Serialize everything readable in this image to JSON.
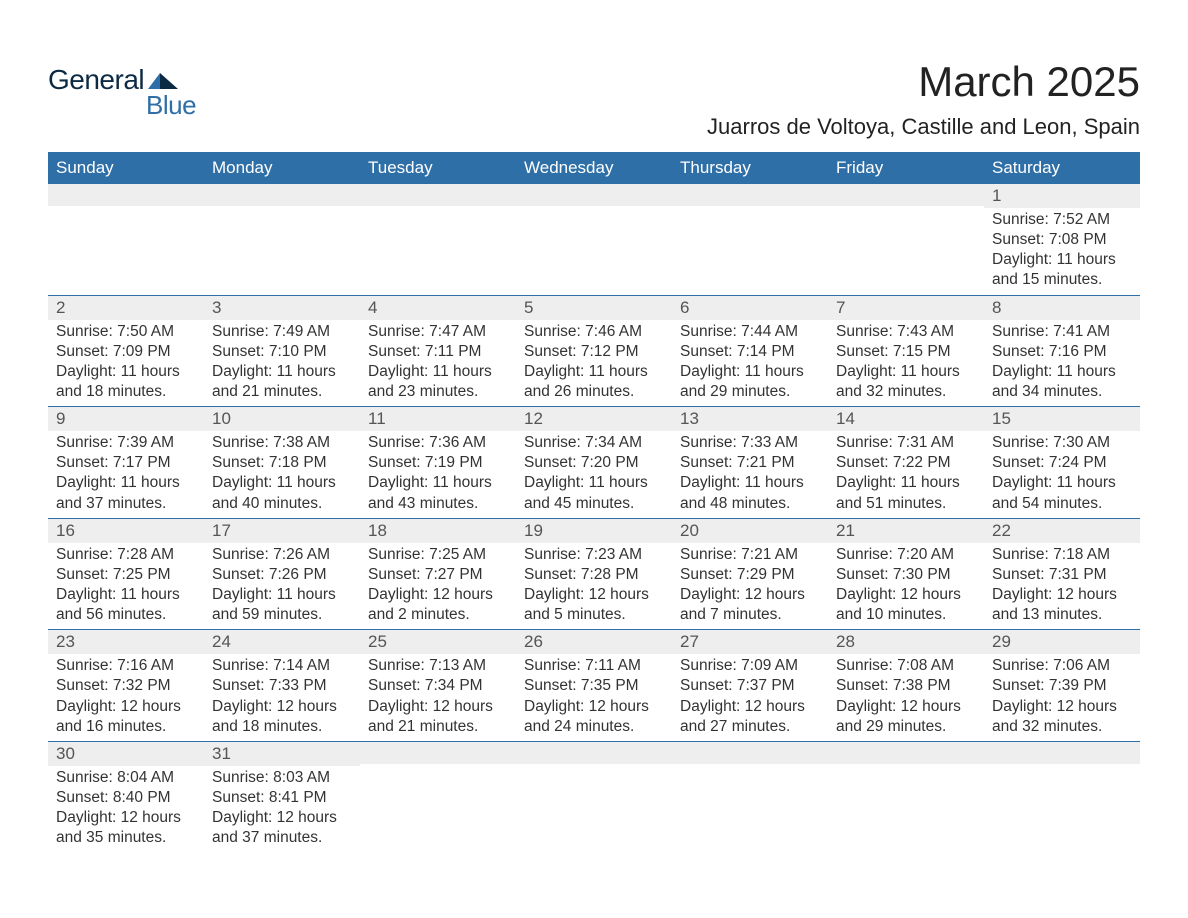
{
  "logo": {
    "word1": "General",
    "word2": "Blue",
    "word1_color": "#0c2a44",
    "word2_color": "#2f6fa7",
    "shape_color": "#2f6fa7"
  },
  "title": "March 2025",
  "location": "Juarros de Voltoya, Castille and Leon, Spain",
  "colors": {
    "header_bg": "#2f6fa7",
    "header_text": "#ffffff",
    "daynum_bg": "#eeeeee",
    "row_border": "#2f6fa7",
    "body_text": "#333333"
  },
  "weekdays": [
    "Sunday",
    "Monday",
    "Tuesday",
    "Wednesday",
    "Thursday",
    "Friday",
    "Saturday"
  ],
  "weeks": [
    [
      null,
      null,
      null,
      null,
      null,
      null,
      {
        "n": "1",
        "sunrise": "Sunrise: 7:52 AM",
        "sunset": "Sunset: 7:08 PM",
        "daylight": "Daylight: 11 hours and 15 minutes."
      }
    ],
    [
      {
        "n": "2",
        "sunrise": "Sunrise: 7:50 AM",
        "sunset": "Sunset: 7:09 PM",
        "daylight": "Daylight: 11 hours and 18 minutes."
      },
      {
        "n": "3",
        "sunrise": "Sunrise: 7:49 AM",
        "sunset": "Sunset: 7:10 PM",
        "daylight": "Daylight: 11 hours and 21 minutes."
      },
      {
        "n": "4",
        "sunrise": "Sunrise: 7:47 AM",
        "sunset": "Sunset: 7:11 PM",
        "daylight": "Daylight: 11 hours and 23 minutes."
      },
      {
        "n": "5",
        "sunrise": "Sunrise: 7:46 AM",
        "sunset": "Sunset: 7:12 PM",
        "daylight": "Daylight: 11 hours and 26 minutes."
      },
      {
        "n": "6",
        "sunrise": "Sunrise: 7:44 AM",
        "sunset": "Sunset: 7:14 PM",
        "daylight": "Daylight: 11 hours and 29 minutes."
      },
      {
        "n": "7",
        "sunrise": "Sunrise: 7:43 AM",
        "sunset": "Sunset: 7:15 PM",
        "daylight": "Daylight: 11 hours and 32 minutes."
      },
      {
        "n": "8",
        "sunrise": "Sunrise: 7:41 AM",
        "sunset": "Sunset: 7:16 PM",
        "daylight": "Daylight: 11 hours and 34 minutes."
      }
    ],
    [
      {
        "n": "9",
        "sunrise": "Sunrise: 7:39 AM",
        "sunset": "Sunset: 7:17 PM",
        "daylight": "Daylight: 11 hours and 37 minutes."
      },
      {
        "n": "10",
        "sunrise": "Sunrise: 7:38 AM",
        "sunset": "Sunset: 7:18 PM",
        "daylight": "Daylight: 11 hours and 40 minutes."
      },
      {
        "n": "11",
        "sunrise": "Sunrise: 7:36 AM",
        "sunset": "Sunset: 7:19 PM",
        "daylight": "Daylight: 11 hours and 43 minutes."
      },
      {
        "n": "12",
        "sunrise": "Sunrise: 7:34 AM",
        "sunset": "Sunset: 7:20 PM",
        "daylight": "Daylight: 11 hours and 45 minutes."
      },
      {
        "n": "13",
        "sunrise": "Sunrise: 7:33 AM",
        "sunset": "Sunset: 7:21 PM",
        "daylight": "Daylight: 11 hours and 48 minutes."
      },
      {
        "n": "14",
        "sunrise": "Sunrise: 7:31 AM",
        "sunset": "Sunset: 7:22 PM",
        "daylight": "Daylight: 11 hours and 51 minutes."
      },
      {
        "n": "15",
        "sunrise": "Sunrise: 7:30 AM",
        "sunset": "Sunset: 7:24 PM",
        "daylight": "Daylight: 11 hours and 54 minutes."
      }
    ],
    [
      {
        "n": "16",
        "sunrise": "Sunrise: 7:28 AM",
        "sunset": "Sunset: 7:25 PM",
        "daylight": "Daylight: 11 hours and 56 minutes."
      },
      {
        "n": "17",
        "sunrise": "Sunrise: 7:26 AM",
        "sunset": "Sunset: 7:26 PM",
        "daylight": "Daylight: 11 hours and 59 minutes."
      },
      {
        "n": "18",
        "sunrise": "Sunrise: 7:25 AM",
        "sunset": "Sunset: 7:27 PM",
        "daylight": "Daylight: 12 hours and 2 minutes."
      },
      {
        "n": "19",
        "sunrise": "Sunrise: 7:23 AM",
        "sunset": "Sunset: 7:28 PM",
        "daylight": "Daylight: 12 hours and 5 minutes."
      },
      {
        "n": "20",
        "sunrise": "Sunrise: 7:21 AM",
        "sunset": "Sunset: 7:29 PM",
        "daylight": "Daylight: 12 hours and 7 minutes."
      },
      {
        "n": "21",
        "sunrise": "Sunrise: 7:20 AM",
        "sunset": "Sunset: 7:30 PM",
        "daylight": "Daylight: 12 hours and 10 minutes."
      },
      {
        "n": "22",
        "sunrise": "Sunrise: 7:18 AM",
        "sunset": "Sunset: 7:31 PM",
        "daylight": "Daylight: 12 hours and 13 minutes."
      }
    ],
    [
      {
        "n": "23",
        "sunrise": "Sunrise: 7:16 AM",
        "sunset": "Sunset: 7:32 PM",
        "daylight": "Daylight: 12 hours and 16 minutes."
      },
      {
        "n": "24",
        "sunrise": "Sunrise: 7:14 AM",
        "sunset": "Sunset: 7:33 PM",
        "daylight": "Daylight: 12 hours and 18 minutes."
      },
      {
        "n": "25",
        "sunrise": "Sunrise: 7:13 AM",
        "sunset": "Sunset: 7:34 PM",
        "daylight": "Daylight: 12 hours and 21 minutes."
      },
      {
        "n": "26",
        "sunrise": "Sunrise: 7:11 AM",
        "sunset": "Sunset: 7:35 PM",
        "daylight": "Daylight: 12 hours and 24 minutes."
      },
      {
        "n": "27",
        "sunrise": "Sunrise: 7:09 AM",
        "sunset": "Sunset: 7:37 PM",
        "daylight": "Daylight: 12 hours and 27 minutes."
      },
      {
        "n": "28",
        "sunrise": "Sunrise: 7:08 AM",
        "sunset": "Sunset: 7:38 PM",
        "daylight": "Daylight: 12 hours and 29 minutes."
      },
      {
        "n": "29",
        "sunrise": "Sunrise: 7:06 AM",
        "sunset": "Sunset: 7:39 PM",
        "daylight": "Daylight: 12 hours and 32 minutes."
      }
    ],
    [
      {
        "n": "30",
        "sunrise": "Sunrise: 8:04 AM",
        "sunset": "Sunset: 8:40 PM",
        "daylight": "Daylight: 12 hours and 35 minutes."
      },
      {
        "n": "31",
        "sunrise": "Sunrise: 8:03 AM",
        "sunset": "Sunset: 8:41 PM",
        "daylight": "Daylight: 12 hours and 37 minutes."
      },
      null,
      null,
      null,
      null,
      null
    ]
  ]
}
